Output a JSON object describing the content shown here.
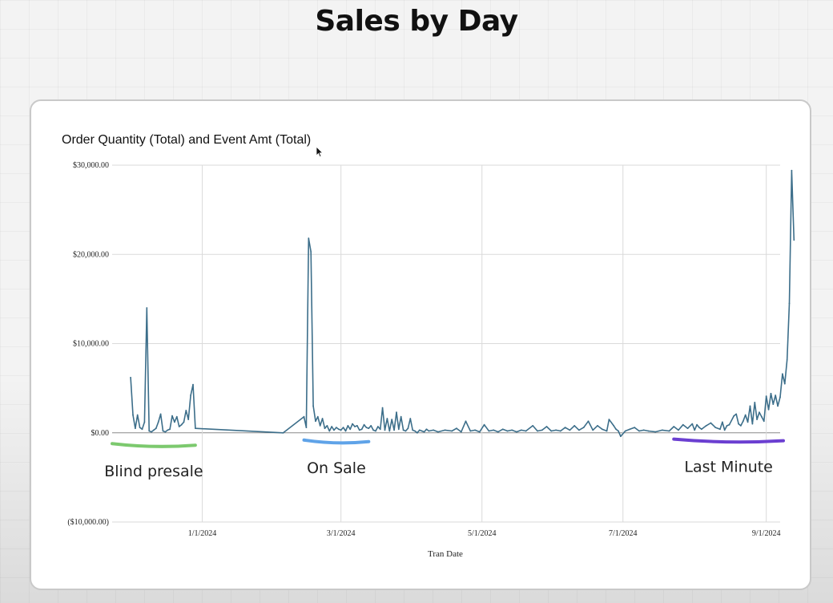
{
  "page": {
    "title": "Sales by Day"
  },
  "chart_data": {
    "type": "line",
    "title": "Order Quantity (Total) and Event Amt (Total)",
    "xlabel": "Tran Date",
    "ylabel": "",
    "ylim": [
      -10000,
      30000
    ],
    "y_ticks": [
      {
        "value": 30000,
        "label": "$30,000.00"
      },
      {
        "value": 20000,
        "label": "$20,000.00"
      },
      {
        "value": 10000,
        "label": "$10,000.00"
      },
      {
        "value": 0,
        "label": "$0.00"
      },
      {
        "value": -10000,
        "label": "($10,000.00)"
      }
    ],
    "x_domain_days": [
      -39,
      250
    ],
    "x_ticks": [
      {
        "day": 0,
        "label": "1/1/2024"
      },
      {
        "day": 60,
        "label": "3/1/2024"
      },
      {
        "day": 121,
        "label": "5/1/2024"
      },
      {
        "day": 182,
        "label": "7/1/2024"
      },
      {
        "day": 244,
        "label": "9/1/2024"
      }
    ],
    "grid": true,
    "series": [
      {
        "name": "Event Amt (Total)",
        "color": "#3c6e8a",
        "points": [
          [
            -31,
            6200
          ],
          [
            -30,
            2000
          ],
          [
            -29,
            500
          ],
          [
            -28,
            2000
          ],
          [
            -27,
            600
          ],
          [
            -26,
            400
          ],
          [
            -25,
            1200
          ],
          [
            -24,
            14000
          ],
          [
            -23,
            200
          ],
          [
            -22,
            100
          ],
          [
            -21,
            300
          ],
          [
            -20,
            500
          ],
          [
            -19,
            1200
          ],
          [
            -18,
            2100
          ],
          [
            -17,
            200
          ],
          [
            -16,
            100
          ],
          [
            -15,
            300
          ],
          [
            -14,
            400
          ],
          [
            -13,
            1900
          ],
          [
            -12,
            1200
          ],
          [
            -11,
            1800
          ],
          [
            -10,
            700
          ],
          [
            -9,
            900
          ],
          [
            -8,
            1200
          ],
          [
            -7,
            2500
          ],
          [
            -6,
            1500
          ],
          [
            -5,
            4200
          ],
          [
            -4,
            5400
          ],
          [
            -3,
            500
          ],
          [
            35,
            0
          ],
          [
            44,
            1800
          ],
          [
            45,
            600
          ],
          [
            46,
            21800
          ],
          [
            47,
            20300
          ],
          [
            48,
            3000
          ],
          [
            49,
            1300
          ],
          [
            50,
            1800
          ],
          [
            51,
            800
          ],
          [
            52,
            1600
          ],
          [
            53,
            500
          ],
          [
            54,
            800
          ],
          [
            55,
            200
          ],
          [
            56,
            700
          ],
          [
            57,
            300
          ],
          [
            58,
            600
          ],
          [
            59,
            400
          ],
          [
            60,
            300
          ],
          [
            61,
            600
          ],
          [
            62,
            200
          ],
          [
            63,
            800
          ],
          [
            64,
            400
          ],
          [
            65,
            1000
          ],
          [
            66,
            700
          ],
          [
            67,
            800
          ],
          [
            68,
            300
          ],
          [
            69,
            400
          ],
          [
            70,
            900
          ],
          [
            71,
            600
          ],
          [
            72,
            500
          ],
          [
            73,
            800
          ],
          [
            74,
            300
          ],
          [
            75,
            200
          ],
          [
            76,
            700
          ],
          [
            77,
            400
          ],
          [
            78,
            2800
          ],
          [
            79,
            300
          ],
          [
            80,
            1600
          ],
          [
            81,
            200
          ],
          [
            82,
            1500
          ],
          [
            83,
            300
          ],
          [
            84,
            2300
          ],
          [
            85,
            400
          ],
          [
            86,
            1800
          ],
          [
            87,
            300
          ],
          [
            88,
            200
          ],
          [
            89,
            500
          ],
          [
            90,
            1600
          ],
          [
            91,
            300
          ],
          [
            92,
            200
          ],
          [
            93,
            0
          ],
          [
            94,
            300
          ],
          [
            95,
            200
          ],
          [
            96,
            100
          ],
          [
            97,
            400
          ],
          [
            98,
            200
          ],
          [
            100,
            300
          ],
          [
            102,
            100
          ],
          [
            105,
            300
          ],
          [
            108,
            200
          ],
          [
            110,
            500
          ],
          [
            112,
            100
          ],
          [
            114,
            1300
          ],
          [
            116,
            200
          ],
          [
            118,
            300
          ],
          [
            120,
            100
          ],
          [
            122,
            900
          ],
          [
            124,
            200
          ],
          [
            126,
            300
          ],
          [
            128,
            100
          ],
          [
            130,
            400
          ],
          [
            132,
            200
          ],
          [
            134,
            300
          ],
          [
            136,
            100
          ],
          [
            138,
            300
          ],
          [
            140,
            200
          ],
          [
            143,
            800
          ],
          [
            145,
            200
          ],
          [
            147,
            300
          ],
          [
            149,
            700
          ],
          [
            151,
            200
          ],
          [
            153,
            300
          ],
          [
            155,
            200
          ],
          [
            157,
            600
          ],
          [
            159,
            300
          ],
          [
            161,
            800
          ],
          [
            163,
            300
          ],
          [
            165,
            600
          ],
          [
            167,
            1300
          ],
          [
            169,
            300
          ],
          [
            171,
            800
          ],
          [
            173,
            400
          ],
          [
            175,
            200
          ],
          [
            176,
            1500
          ],
          [
            178,
            800
          ],
          [
            179,
            400
          ],
          [
            180,
            200
          ],
          [
            181,
            -400
          ],
          [
            183,
            200
          ],
          [
            185,
            400
          ],
          [
            187,
            600
          ],
          [
            189,
            200
          ],
          [
            191,
            300
          ],
          [
            193,
            200
          ],
          [
            196,
            100
          ],
          [
            199,
            300
          ],
          [
            202,
            200
          ],
          [
            204,
            700
          ],
          [
            206,
            300
          ],
          [
            208,
            900
          ],
          [
            210,
            500
          ],
          [
            212,
            1000
          ],
          [
            213,
            300
          ],
          [
            214,
            900
          ],
          [
            215,
            600
          ],
          [
            216,
            400
          ],
          [
            218,
            800
          ],
          [
            220,
            1100
          ],
          [
            222,
            600
          ],
          [
            224,
            400
          ],
          [
            225,
            1200
          ],
          [
            226,
            300
          ],
          [
            227,
            800
          ],
          [
            228,
            900
          ],
          [
            230,
            1900
          ],
          [
            231,
            2100
          ],
          [
            232,
            1000
          ],
          [
            233,
            800
          ],
          [
            234,
            1300
          ],
          [
            235,
            2000
          ],
          [
            236,
            1200
          ],
          [
            237,
            3000
          ],
          [
            238,
            1000
          ],
          [
            239,
            3400
          ],
          [
            240,
            1500
          ],
          [
            241,
            2300
          ],
          [
            242,
            1800
          ],
          [
            243,
            1300
          ],
          [
            244,
            4100
          ],
          [
            245,
            2600
          ],
          [
            246,
            4400
          ],
          [
            247,
            3200
          ],
          [
            248,
            4200
          ],
          [
            249,
            3000
          ],
          [
            250,
            4000
          ],
          [
            251,
            6600
          ],
          [
            252,
            5500
          ],
          [
            253,
            8200
          ],
          [
            254,
            14500
          ],
          [
            255,
            29400
          ],
          [
            256,
            21600
          ]
        ]
      }
    ],
    "annotations": [
      {
        "label": "Blind presale",
        "underline_color": "#7cc96e",
        "day_start": -39,
        "day_end": -3,
        "value": -1300
      },
      {
        "label": "On Sale",
        "underline_color": "#5fa3e8",
        "day_start": 44,
        "day_end": 72,
        "value": -900
      },
      {
        "label": "Last Minute",
        "underline_color": "#6b3fd1",
        "day_start": 204,
        "day_end": 260,
        "value": -800
      }
    ]
  }
}
